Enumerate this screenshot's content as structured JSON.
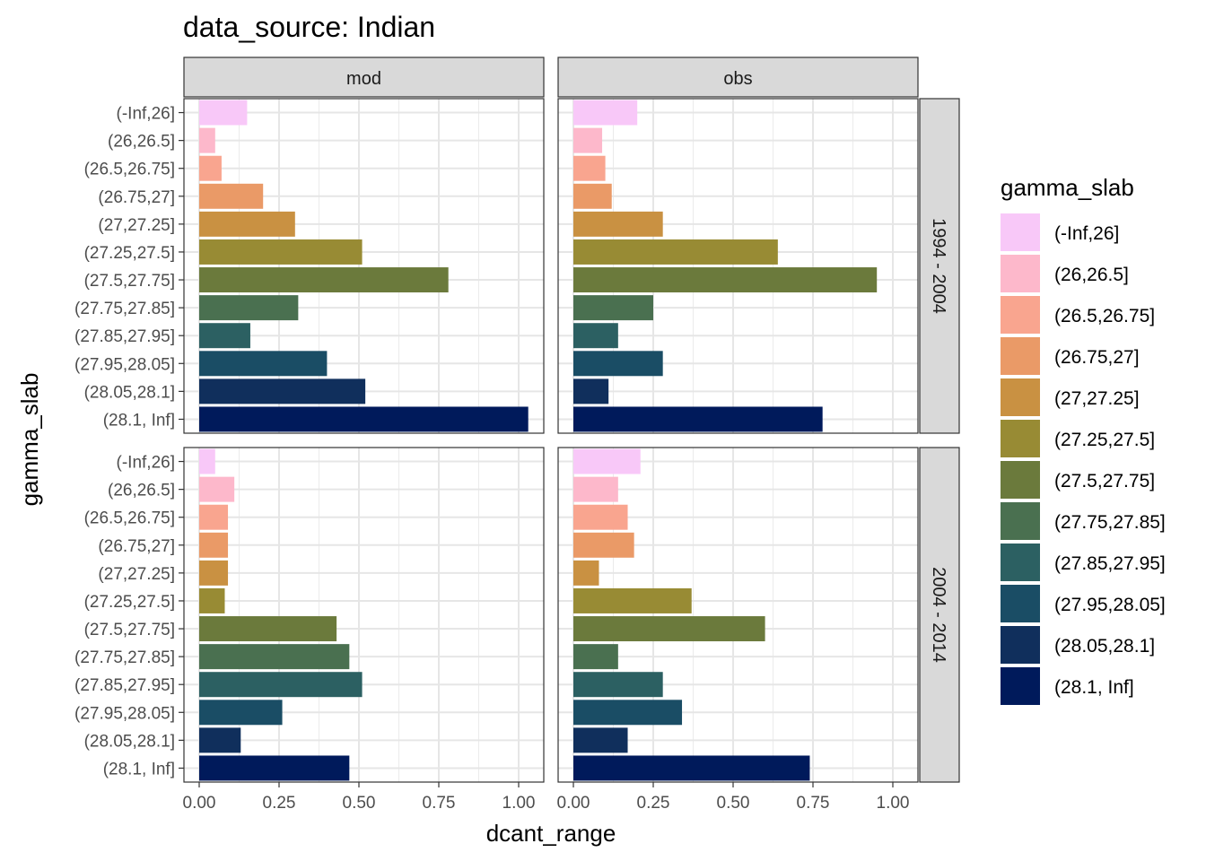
{
  "chart_data": {
    "type": "bar",
    "orientation": "horizontal",
    "title": "data_source: Indian",
    "xlabel": "dcant_range",
    "ylabel": "gamma_slab",
    "xlim": [
      0,
      1.07
    ],
    "x_ticks": [
      "0.00",
      "0.25",
      "0.50",
      "0.75",
      "1.00"
    ],
    "x_tick_values": [
      0,
      0.25,
      0.5,
      0.75,
      1.0
    ],
    "grid": true,
    "categories": [
      "(-Inf,26]",
      "(26,26.5]",
      "(26.5,26.75]",
      "(26.75,27]",
      "(27,27.25]",
      "(27.25,27.5]",
      "(27.5,27.75]",
      "(27.75,27.85]",
      "(27.85,27.95]",
      "(27.95,28.05]",
      "(28.05,28.1]",
      "(28.1, Inf]"
    ],
    "colors": [
      "#F8C8F8",
      "#FDB8CB",
      "#F9A58F",
      "#EA9A67",
      "#C99142",
      "#988B34",
      "#6B7A3C",
      "#4A7050",
      "#2C6062",
      "#1A4D65",
      "#102F5C",
      "#001A5B"
    ],
    "facet_columns": [
      "mod",
      "obs"
    ],
    "facet_rows": [
      "1994 - 2004",
      "2004 - 2014"
    ],
    "panels": [
      {
        "column": "mod",
        "row": "1994 - 2004",
        "values": [
          0.15,
          0.05,
          0.07,
          0.2,
          0.3,
          0.51,
          0.78,
          0.31,
          0.16,
          0.4,
          0.52,
          1.03
        ]
      },
      {
        "column": "obs",
        "row": "1994 - 2004",
        "values": [
          0.2,
          0.09,
          0.1,
          0.12,
          0.28,
          0.64,
          0.95,
          0.25,
          0.14,
          0.28,
          0.11,
          0.78
        ]
      },
      {
        "column": "mod",
        "row": "2004 - 2014",
        "values": [
          0.05,
          0.11,
          0.09,
          0.09,
          0.09,
          0.08,
          0.43,
          0.47,
          0.51,
          0.26,
          0.13,
          0.47
        ]
      },
      {
        "column": "obs",
        "row": "2004 - 2014",
        "values": [
          0.21,
          0.14,
          0.17,
          0.19,
          0.08,
          0.37,
          0.6,
          0.14,
          0.28,
          0.34,
          0.17,
          0.74
        ]
      }
    ],
    "legend": {
      "title": "gamma_slab",
      "position": "right",
      "entries": [
        "(-Inf,26]",
        "(26,26.5]",
        "(26.5,26.75]",
        "(26.75,27]",
        "(27,27.25]",
        "(27.25,27.5]",
        "(27.5,27.75]",
        "(27.75,27.85]",
        "(27.85,27.95]",
        "(27.95,28.05]",
        "(28.05,28.1]",
        "(28.1, Inf]"
      ]
    }
  }
}
